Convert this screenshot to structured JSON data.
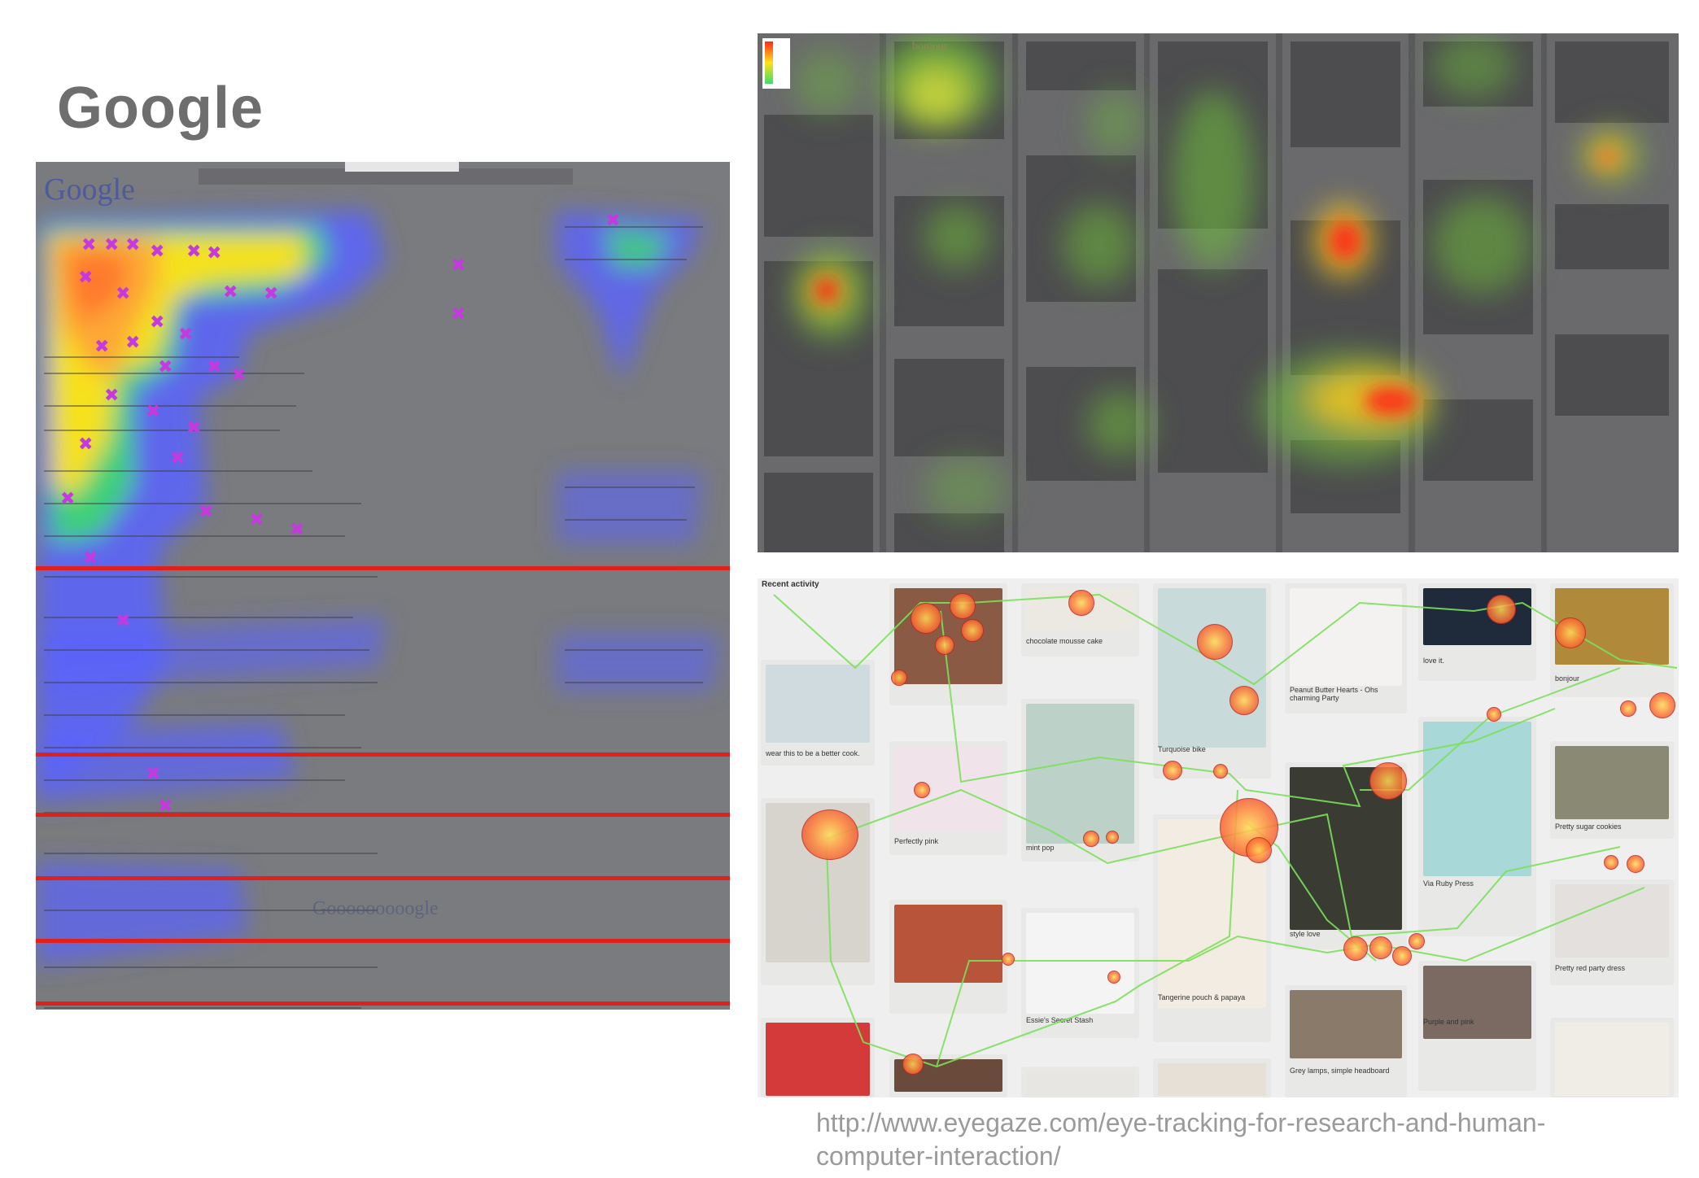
{
  "title": "Google",
  "source_text": "http://www.eyegaze.com/eye-tracking-for-research-and-human-computer-interaction/",
  "gaze_panel": {
    "recent_activity": "Recent activity",
    "pin_captions": [
      "chocolate mousse cake",
      "Turquoise bike",
      "Peanut Butter Hearts - Ohs charming Party",
      "love it.",
      "bonjour",
      "wear this to be a better cook.",
      "Perfectly pink",
      "mint pop",
      "Pretty sugar cookies",
      "Via Ruby Press",
      "style love",
      "Tangerine pouch & papaya",
      "Essie's Secret Stash",
      "Purple and pink",
      "Pretty red party dress",
      "Grey lamps, simple headboard"
    ]
  },
  "colors": {
    "heat_hot": "#ff2a1a",
    "heat_warm": "#ffe21a",
    "heat_mid": "#3ddc6e",
    "heat_cool": "#5a63ff",
    "gaze_line": "#7be05a"
  }
}
